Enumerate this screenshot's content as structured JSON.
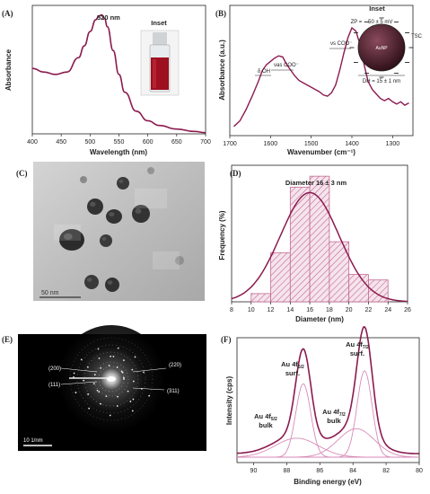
{
  "figure": {
    "colors": {
      "main": "#8b1a4f",
      "fill": "#c46a92",
      "light": "#d88ab8",
      "inset_glass": "#9e1020"
    },
    "panel_labels": [
      "(A)",
      "(B)",
      "(C)",
      "(D)",
      "(E)",
      "(F)"
    ],
    "panel_a": {
      "inset_title": "Inset",
      "peak_label": "520 nm"
    },
    "panel_b": {
      "inset_title": "Inset",
      "band_labels": [
        "δ OH",
        "νas COO⁻",
        "νs COO⁻"
      ],
      "inset_zp": "ZP = − 50 ± 5 mV",
      "inset_particle": "AuNP",
      "inset_shell": "TSC",
      "inset_size": "DH = 15 ± 1 nm"
    },
    "panel_c": {
      "scale_label": "50 nm"
    },
    "panel_d": {
      "annotation": "Diameter 16 ± 3 nm"
    },
    "panel_e": {
      "rings": [
        "(200)",
        "(220)",
        "(111)",
        "(311)"
      ],
      "scale_label": "10 1/nm"
    },
    "panel_f": {
      "peak_labels": [
        {
          "main": "Au 4f",
          "sub": "5/2",
          "line2": "bulk"
        },
        {
          "main": "Au 4f",
          "sub": "5/2",
          "line2": "surf."
        },
        {
          "main": "Au 4f",
          "sub": "7/2",
          "line2": "bulk"
        },
        {
          "main": "Au 4f",
          "sub": "7/2",
          "line2": "surf."
        }
      ]
    }
  },
  "chart_data": [
    {
      "panel": "A",
      "type": "line",
      "xlabel": "Wavelength (nm)",
      "ylabel": "Absorbance",
      "xlim": [
        400,
        700
      ],
      "xticks": [
        400,
        450,
        500,
        550,
        600,
        650,
        700
      ],
      "x": [
        400,
        420,
        440,
        460,
        480,
        490,
        500,
        510,
        515,
        520,
        525,
        530,
        540,
        550,
        560,
        580,
        600,
        620,
        650,
        680,
        700
      ],
      "y": [
        0.55,
        0.52,
        0.5,
        0.52,
        0.64,
        0.74,
        0.86,
        0.96,
        0.99,
        1.0,
        0.97,
        0.9,
        0.7,
        0.5,
        0.35,
        0.19,
        0.11,
        0.07,
        0.04,
        0.02,
        0.01
      ]
    },
    {
      "panel": "B",
      "type": "line",
      "xlabel": "Wavenumber (cm⁻¹)",
      "ylabel": "Absorbance (a.u.)",
      "xlim": [
        1700,
        1250
      ],
      "x_reversed": true,
      "xticks": [
        1700,
        1600,
        1500,
        1400,
        1300
      ],
      "x": [
        1690,
        1675,
        1660,
        1645,
        1630,
        1620,
        1610,
        1600,
        1590,
        1580,
        1570,
        1560,
        1550,
        1540,
        1530,
        1520,
        1510,
        1500,
        1490,
        1480,
        1470,
        1460,
        1450,
        1440,
        1430,
        1420,
        1410,
        1400,
        1390,
        1380,
        1370,
        1360,
        1350,
        1340,
        1330,
        1320,
        1310,
        1300,
        1290,
        1280,
        1270,
        1260
      ],
      "y": [
        0.05,
        0.1,
        0.2,
        0.32,
        0.45,
        0.55,
        0.6,
        0.63,
        0.66,
        0.68,
        0.67,
        0.6,
        0.55,
        0.5,
        0.46,
        0.44,
        0.42,
        0.4,
        0.38,
        0.36,
        0.33,
        0.32,
        0.35,
        0.42,
        0.55,
        0.7,
        0.84,
        0.93,
        0.9,
        0.78,
        0.6,
        0.45,
        0.38,
        0.34,
        0.3,
        0.28,
        0.3,
        0.27,
        0.25,
        0.27,
        0.24,
        0.26
      ]
    },
    {
      "panel": "D",
      "type": "bar",
      "xlabel": "Diameter (nm)",
      "ylabel": "Frequency (%)",
      "xlim": [
        8,
        26
      ],
      "xticks": [
        8,
        10,
        12,
        14,
        16,
        18,
        20,
        22,
        24,
        26
      ],
      "bin_edges": [
        10,
        12,
        14,
        16,
        18,
        20,
        22,
        24
      ],
      "values": [
        3,
        18,
        42,
        46,
        22,
        10,
        8
      ],
      "fit_mean": 16,
      "fit_sd": 3,
      "fit_peak": 40,
      "ylim": [
        0,
        50
      ]
    },
    {
      "panel": "F",
      "type": "line",
      "xlabel": "Binding energy (eV)",
      "ylabel": "Intensity (cps)",
      "xlim": [
        91,
        80
      ],
      "x_reversed": true,
      "xticks": [
        90,
        88,
        86,
        84,
        82,
        80
      ],
      "series": [
        {
          "peaks": [
            [
              87.0,
              1.0,
              0.45
            ],
            [
              83.3,
              1.17,
              0.45
            ],
            [
              87.4,
              0.22,
              1.3
            ],
            [
              83.8,
              0.33,
              1.1
            ]
          ],
          "baseline": 0.04
        },
        {
          "peaks": [
            [
              87.0,
              0.85,
              0.45
            ]
          ]
        },
        {
          "peaks": [
            [
              83.3,
              1.0,
              0.45
            ]
          ]
        },
        {
          "peaks": [
            [
              87.4,
              0.22,
              1.3
            ]
          ]
        },
        {
          "peaks": [
            [
              83.8,
              0.33,
              1.1
            ]
          ]
        }
      ],
      "ylim": [
        0,
        1.3
      ]
    }
  ]
}
